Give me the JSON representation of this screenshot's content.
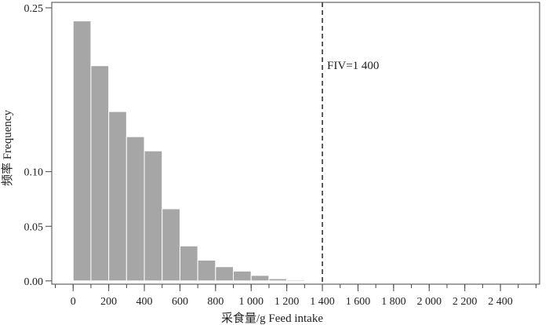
{
  "chart_data": {
    "type": "bar",
    "xlabel": "采食量/g Feed intake",
    "ylabel": "频率 Frequency",
    "bin_width": 100,
    "bins": [
      {
        "x0": 0,
        "x1": 100,
        "value": 0.238
      },
      {
        "x0": 100,
        "x1": 200,
        "value": 0.197
      },
      {
        "x0": 200,
        "x1": 300,
        "value": 0.155
      },
      {
        "x0": 300,
        "x1": 400,
        "value": 0.132
      },
      {
        "x0": 400,
        "x1": 500,
        "value": 0.119
      },
      {
        "x0": 500,
        "x1": 600,
        "value": 0.066
      },
      {
        "x0": 600,
        "x1": 700,
        "value": 0.032
      },
      {
        "x0": 700,
        "x1": 800,
        "value": 0.019
      },
      {
        "x0": 800,
        "x1": 900,
        "value": 0.013
      },
      {
        "x0": 900,
        "x1": 1000,
        "value": 0.009
      },
      {
        "x0": 1000,
        "x1": 1100,
        "value": 0.005
      },
      {
        "x0": 1100,
        "x1": 1200,
        "value": 0.002
      },
      {
        "x0": 1200,
        "x1": 1300,
        "value": 0.001
      },
      {
        "x0": 1300,
        "x1": 1400,
        "value": 0.0005
      }
    ],
    "xlim": [
      -120,
      2620
    ],
    "ylim": [
      -0.003,
      0.255
    ],
    "x_ticks": [
      {
        "value": 0,
        "label": "0"
      },
      {
        "value": 200,
        "label": "200"
      },
      {
        "value": 400,
        "label": "400"
      },
      {
        "value": 600,
        "label": "600"
      },
      {
        "value": 800,
        "label": "800"
      },
      {
        "value": 1000,
        "label": "1 000"
      },
      {
        "value": 1200,
        "label": "1 200"
      },
      {
        "value": 1400,
        "label": "1 400"
      },
      {
        "value": 1600,
        "label": "1 600"
      },
      {
        "value": 1800,
        "label": "1 800"
      },
      {
        "value": 2000,
        "label": "2 000"
      },
      {
        "value": 2200,
        "label": "2 200"
      },
      {
        "value": 2400,
        "label": "2 400"
      }
    ],
    "x_minor_step": 100,
    "y_ticks": [
      {
        "value": 0.0,
        "label": "0.00"
      },
      {
        "value": 0.05,
        "label": "0.05"
      },
      {
        "value": 0.1,
        "label": "0.10"
      },
      {
        "value": 0.25,
        "label": "0.25"
      }
    ],
    "reference_line": {
      "x": 1400,
      "label": "FIV=1 400",
      "style": "dashed"
    },
    "grid": false,
    "colors": {
      "bar_fill": "#a6a6a6",
      "bar_edge": "#ffffff",
      "axis": "#444444"
    }
  }
}
